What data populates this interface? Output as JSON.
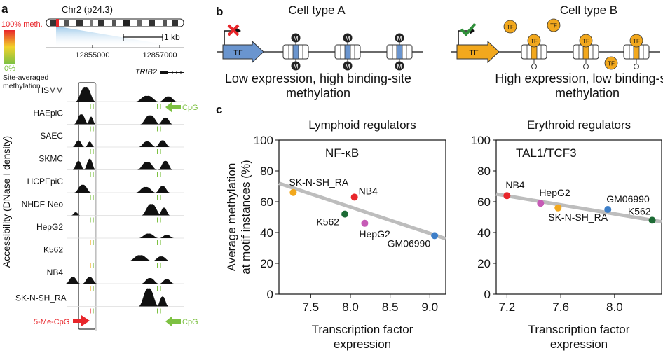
{
  "panels": {
    "a": "a",
    "b": "b",
    "c": "c"
  },
  "panel_a": {
    "chromosome_label": "Chr2 (p24.3)",
    "scale_label": "1 kb",
    "coord_left": "12855000",
    "coord_right": "12857000",
    "gene_label": "TRIB2",
    "legend_top": "100% meth.",
    "legend_bottom": "0%",
    "legend_caption_1": "Site-averaged",
    "legend_caption_2": "methylation",
    "y_axis_label": "Accessibility (DNase I density)",
    "tracks": [
      "HSMM",
      "HAEpiC",
      "SAEC",
      "SKMC",
      "HCPEpiC",
      "NHDF-Neo",
      "HepG2",
      "K562",
      "NB4",
      "SK-N-SH_RA"
    ],
    "cpg_label": "CpG",
    "cpg_label_bottom": "CpG",
    "meth_cpg_label": "5-Me-CpG",
    "colors": {
      "methylated": "#e8262b",
      "unmethylated": "#7dc142",
      "accent_arrow": "#7dc142"
    }
  },
  "panel_b": {
    "cell_a": {
      "title": "Cell type A",
      "tf_label": "TF",
      "caption_line1": "Low expression, high binding-site",
      "caption_line2": "methylation",
      "mark": "M"
    },
    "cell_b": {
      "title": "Cell type B",
      "tf_label": "TF",
      "caption_line1": "High expression, low binding-site",
      "caption_line2": "methylation"
    },
    "colors": {
      "tf_a": "#6a95cf",
      "tf_b": "#f2a81d",
      "repress": "#e8262b",
      "activate": "#2f8f3a"
    }
  },
  "chart_data": [
    {
      "type": "scatter",
      "title": "Lymphoid regulators",
      "inset_label": "NF-κB",
      "xlabel_line1": "Transcription factor",
      "xlabel_line2": "expression",
      "ylabel_line1": "Average methylation",
      "ylabel_line2": "at motif instances (%)",
      "xlim": [
        7.1,
        9.2
      ],
      "ylim": [
        0,
        100
      ],
      "xticks": [
        7.5,
        8.0,
        8.5,
        9.0
      ],
      "xtick_labels": [
        "7.5",
        "8.0",
        "8.5",
        "9.0"
      ],
      "yticks": [
        0,
        20,
        40,
        60,
        80,
        100
      ],
      "ytick_labels": [
        "0",
        "20",
        "40",
        "60",
        "80",
        "100"
      ],
      "trend": {
        "x": [
          7.1,
          9.2
        ],
        "y": [
          72,
          36
        ]
      },
      "points": [
        {
          "label": "SK-N-SH_RA",
          "x": 7.28,
          "y": 66,
          "color": "#f2a81d"
        },
        {
          "label": "NB4",
          "x": 8.05,
          "y": 63,
          "color": "#e8262b"
        },
        {
          "label": "K562",
          "x": 7.93,
          "y": 52,
          "color": "#1d6b35"
        },
        {
          "label": "HepG2",
          "x": 8.18,
          "y": 46,
          "color": "#c65bb6"
        },
        {
          "label": "GM06990",
          "x": 9.06,
          "y": 38,
          "color": "#3d7fc9"
        }
      ]
    },
    {
      "type": "scatter",
      "title": "Erythroid regulators",
      "inset_label": "TAL1/TCF3",
      "xlabel_line1": "Transcription factor",
      "xlabel_line2": "expression",
      "xlim": [
        7.12,
        8.35
      ],
      "ylim": [
        0,
        100
      ],
      "xticks": [
        7.2,
        7.6,
        8.0
      ],
      "xtick_labels": [
        "7.2",
        "7.6",
        "8.0"
      ],
      "yticks": [
        0,
        20,
        40,
        60,
        80,
        100
      ],
      "ytick_labels": [
        "0",
        "20",
        "40",
        "60",
        "80",
        "100"
      ],
      "trend": {
        "x": [
          7.12,
          8.35
        ],
        "y": [
          65,
          47
        ]
      },
      "points": [
        {
          "label": "NB4",
          "x": 7.2,
          "y": 64,
          "color": "#e8262b"
        },
        {
          "label": "HepG2",
          "x": 7.45,
          "y": 59,
          "color": "#c65bb6"
        },
        {
          "label": "SK-N-SH_RA",
          "x": 7.58,
          "y": 56,
          "color": "#f2a81d"
        },
        {
          "label": "GM06990",
          "x": 7.95,
          "y": 55,
          "color": "#3d7fc9"
        },
        {
          "label": "K562",
          "x": 8.28,
          "y": 48,
          "color": "#1d6b35"
        }
      ]
    }
  ]
}
